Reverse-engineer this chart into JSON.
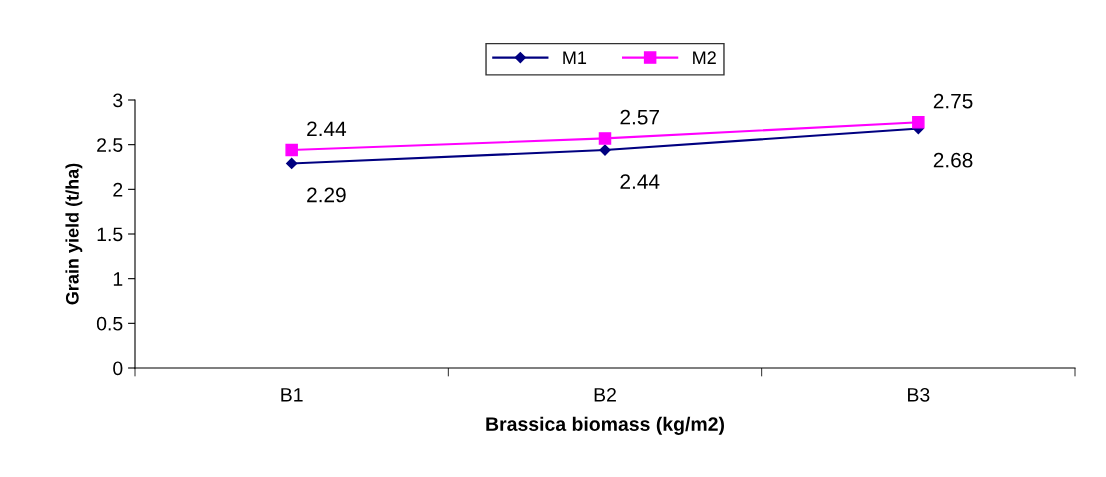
{
  "chart_data": {
    "type": "line",
    "xlabel": "Brassica biomass (kg/m2)",
    "ylabel": "Grain yield (t/ha)",
    "categories": [
      "B1",
      "B2",
      "B3"
    ],
    "series": [
      {
        "name": "M1",
        "color": "#000080",
        "marker": "diamond",
        "values": [
          2.29,
          2.44,
          2.68
        ]
      },
      {
        "name": "M2",
        "color": "#ff00ff",
        "marker": "square",
        "values": [
          2.44,
          2.57,
          2.75
        ]
      }
    ],
    "ylim": [
      0,
      3
    ],
    "yticks": [
      0,
      0.5,
      1,
      1.5,
      2,
      2.5,
      3
    ],
    "grid": false,
    "legend": "top",
    "data_labels": true
  }
}
